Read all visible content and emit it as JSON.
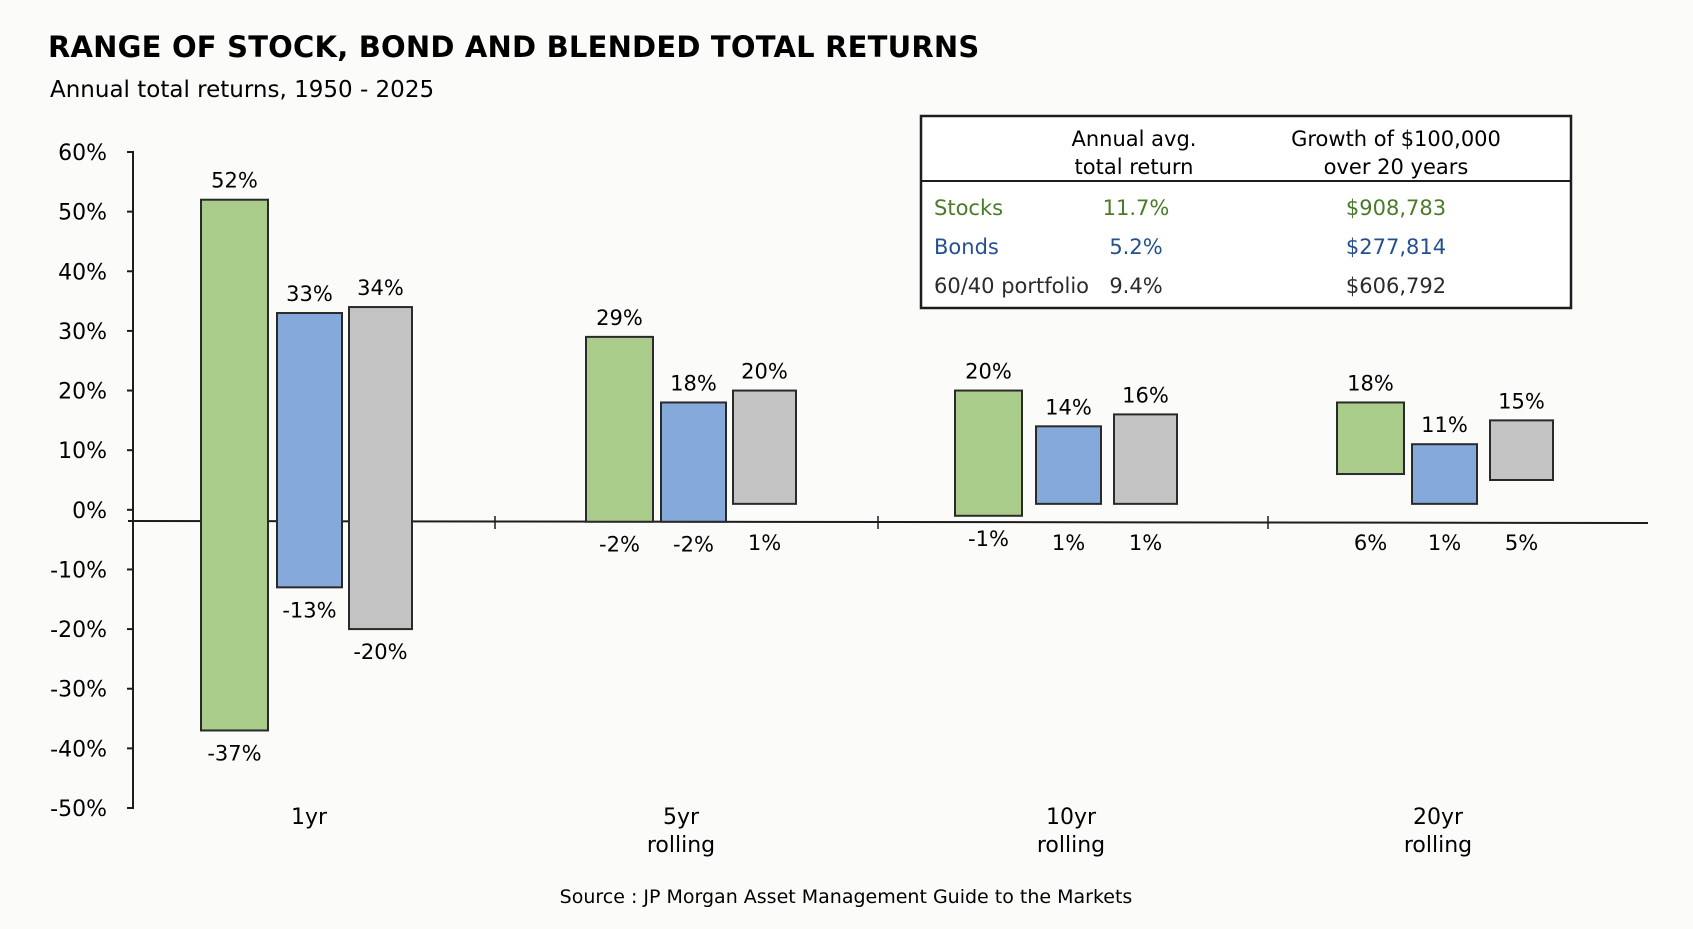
{
  "title": "RANGE OF STOCK, BOND AND BLENDED TOTAL RETURNS",
  "subtitle": "Annual total returns, 1950 - 2025",
  "source": "Source : JP Morgan Asset Management Guide to the Markets",
  "colors": {
    "stocks": "#a9cc8b",
    "bonds": "#86a9dc",
    "blend": "#c3c3c3",
    "stocks_text": "#4a7a2a",
    "bonds_text": "#24508f",
    "blend_text": "#2b2b2b"
  },
  "chart_data": {
    "type": "bar",
    "subtype": "floating range",
    "title": "RANGE OF STOCK, BOND AND BLENDED TOTAL RETURNS",
    "subtitle": "Annual total returns, 1950 - 2025",
    "xlabel": "",
    "ylabel": "",
    "ylim": [
      -50,
      60
    ],
    "yticks": [
      60,
      50,
      40,
      30,
      20,
      10,
      0,
      -10,
      -20,
      -30,
      -40,
      -50
    ],
    "ytick_labels": [
      "60%",
      "50%",
      "40%",
      "30%",
      "20%",
      "10%",
      "0%",
      "-10%",
      "-20%",
      "-30%",
      "-40%",
      "-50%"
    ],
    "categories": [
      {
        "lines": [
          "1yr"
        ]
      },
      {
        "lines": [
          "5yr",
          "rolling"
        ]
      },
      {
        "lines": [
          "10yr",
          "rolling"
        ]
      },
      {
        "lines": [
          "20yr",
          "rolling"
        ]
      }
    ],
    "series": [
      {
        "key": "stocks",
        "high": [
          52,
          29,
          20,
          18
        ],
        "low": [
          -37,
          -2,
          -1,
          6
        ],
        "high_labels": [
          "52%",
          "29%",
          "20%",
          "18%"
        ],
        "low_labels": [
          "-37%",
          "-2%",
          "-1%",
          "6%"
        ]
      },
      {
        "key": "bonds",
        "high": [
          33,
          18,
          14,
          11
        ],
        "low": [
          -13,
          -2,
          1,
          1
        ],
        "high_labels": [
          "33%",
          "18%",
          "14%",
          "11%"
        ],
        "low_labels": [
          "-13%",
          "-2%",
          "1%",
          "1%"
        ]
      },
      {
        "key": "blend",
        "high": [
          34,
          20,
          16,
          15
        ],
        "low": [
          -20,
          1,
          1,
          5
        ],
        "high_labels": [
          "34%",
          "20%",
          "16%",
          "15%"
        ],
        "low_labels": [
          "-20%",
          "1%",
          "1%",
          "5%"
        ]
      }
    ],
    "grid": false,
    "legend": "none"
  },
  "table": {
    "headers": [
      [
        "Annual avg.",
        "total return"
      ],
      [
        "Growth of $100,000",
        "over 20 years"
      ]
    ],
    "rows": [
      {
        "name": "Stocks",
        "avg": "11.7%",
        "growth": "$908,783",
        "color_key": "stocks_text"
      },
      {
        "name": "Bonds",
        "avg": "5.2%",
        "growth": "$277,814",
        "color_key": "bonds_text"
      },
      {
        "name": "60/40 portfolio",
        "avg": "9.4%",
        "growth": "$606,792",
        "color_key": "blend_text"
      }
    ]
  }
}
